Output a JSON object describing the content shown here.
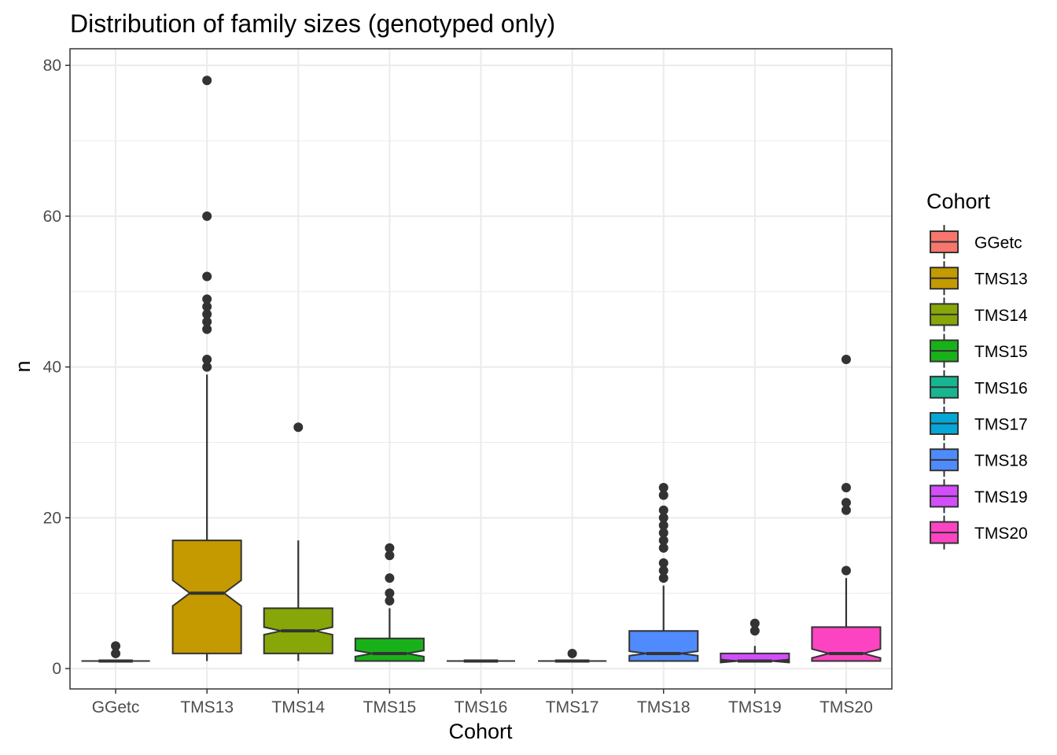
{
  "chart_data": {
    "type": "boxplot",
    "notched": true,
    "title": "Distribution of family sizes (genotyped only)",
    "xlabel": "Cohort",
    "ylabel": "n",
    "ylim": [
      -2.7,
      82.2
    ],
    "yticks": [
      0,
      20,
      40,
      60,
      80
    ],
    "grid": true,
    "legend": {
      "title": "Cohort",
      "position": "right"
    },
    "categories": [
      "GGetc",
      "TMS13",
      "TMS14",
      "TMS15",
      "TMS16",
      "TMS17",
      "TMS18",
      "TMS19",
      "TMS20"
    ],
    "series": [
      {
        "name": "GGetc",
        "color": "#F8766D",
        "q1": 1,
        "median": 1,
        "q3": 1,
        "notch": [
          1,
          1
        ],
        "whisker_low": 1,
        "whisker_high": 1,
        "outliers": [
          2,
          3
        ]
      },
      {
        "name": "TMS13",
        "color": "#C49A00",
        "q1": 2,
        "median": 10,
        "q3": 17,
        "notch": [
          8.3,
          11.7
        ],
        "whisker_low": 1,
        "whisker_high": 39,
        "outliers": [
          40,
          41,
          45,
          46,
          47,
          48,
          49,
          52,
          60,
          78
        ]
      },
      {
        "name": "TMS14",
        "color": "#86A707",
        "q1": 2,
        "median": 5,
        "q3": 8,
        "notch": [
          4.5,
          5.5
        ],
        "whisker_low": 1,
        "whisker_high": 17,
        "outliers": [
          32
        ]
      },
      {
        "name": "TMS15",
        "color": "#19B11A",
        "q1": 1,
        "median": 2,
        "q3": 4,
        "notch": [
          1.6,
          2.4
        ],
        "whisker_low": 1,
        "whisker_high": 8,
        "outliers": [
          9,
          10,
          12,
          15,
          16
        ]
      },
      {
        "name": "TMS16",
        "color": "#16B690",
        "q1": 1,
        "median": 1,
        "q3": 1,
        "notch": [
          1,
          1
        ],
        "whisker_low": 1,
        "whisker_high": 1,
        "outliers": []
      },
      {
        "name": "TMS17",
        "color": "#05A7D6",
        "q1": 1,
        "median": 1,
        "q3": 1,
        "notch": [
          1,
          1
        ],
        "whisker_low": 1,
        "whisker_high": 1,
        "outliers": [
          2
        ]
      },
      {
        "name": "TMS18",
        "color": "#4F8BFC",
        "q1": 1,
        "median": 2,
        "q3": 5,
        "notch": [
          1.7,
          2.3
        ],
        "whisker_low": 1,
        "whisker_high": 11,
        "outliers": [
          12,
          13,
          14,
          16,
          17,
          18,
          19,
          20,
          21,
          23,
          24
        ]
      },
      {
        "name": "TMS19",
        "color": "#D34DFC",
        "q1": 1,
        "median": 1,
        "q3": 2,
        "notch": [
          0.8,
          1.2
        ],
        "whisker_low": 1,
        "whisker_high": 3,
        "outliers": [
          5,
          6
        ]
      },
      {
        "name": "TMS20",
        "color": "#FC44C2",
        "q1": 1,
        "median": 2,
        "q3": 5.5,
        "notch": [
          1.4,
          2.6
        ],
        "whisker_low": 1,
        "whisker_high": 12,
        "outliers": [
          13,
          21,
          22,
          24,
          41
        ]
      }
    ]
  }
}
